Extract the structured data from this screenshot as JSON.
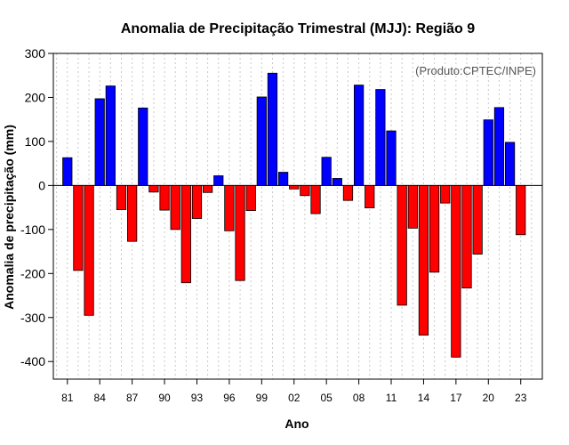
{
  "chart_data": {
    "type": "bar",
    "title": "Anomalia de Precipitação Trimestral (MJJ): Região 9",
    "xlabel": "Ano",
    "ylabel": "Anomalia de precipitação (mm)",
    "annotation": "(Produto:CPTEC/INPE)",
    "ylim": [
      -440,
      300
    ],
    "yticks": [
      300,
      200,
      100,
      0,
      -100,
      -200,
      -300,
      -400
    ],
    "xlim": [
      1979.7,
      2025
    ],
    "xticks": [
      {
        "year": 1981,
        "label": "81"
      },
      {
        "year": 1984,
        "label": "84"
      },
      {
        "year": 1987,
        "label": "87"
      },
      {
        "year": 1990,
        "label": "90"
      },
      {
        "year": 1993,
        "label": "93"
      },
      {
        "year": 1996,
        "label": "96"
      },
      {
        "year": 1999,
        "label": "99"
      },
      {
        "year": 2002,
        "label": "02"
      },
      {
        "year": 2005,
        "label": "05"
      },
      {
        "year": 2008,
        "label": "08"
      },
      {
        "year": 2011,
        "label": "11"
      },
      {
        "year": 2014,
        "label": "14"
      },
      {
        "year": 2017,
        "label": "17"
      },
      {
        "year": 2020,
        "label": "20"
      },
      {
        "year": 2023,
        "label": "23"
      }
    ],
    "grid": true,
    "positive_color": "#0000ff",
    "negative_color": "#ff0000",
    "years": [
      1981,
      1982,
      1983,
      1984,
      1985,
      1986,
      1987,
      1988,
      1989,
      1990,
      1991,
      1992,
      1993,
      1994,
      1995,
      1996,
      1997,
      1998,
      1999,
      2000,
      2001,
      2002,
      2003,
      2004,
      2005,
      2006,
      2007,
      2008,
      2009,
      2010,
      2011,
      2012,
      2013,
      2014,
      2015,
      2016,
      2017,
      2018,
      2019,
      2020,
      2021,
      2022,
      2023
    ],
    "values": [
      63,
      -193,
      -295,
      197,
      226,
      -55,
      -127,
      176,
      -15,
      -56,
      -100,
      -221,
      -75,
      -16,
      22,
      -103,
      -216,
      -57,
      201,
      255,
      30,
      -8,
      -23,
      -64,
      64,
      16,
      -34,
      228,
      -51,
      218,
      124,
      -272,
      -97,
      -340,
      -197,
      -40,
      -390,
      -233,
      -156,
      149,
      177,
      98,
      -112
    ]
  }
}
